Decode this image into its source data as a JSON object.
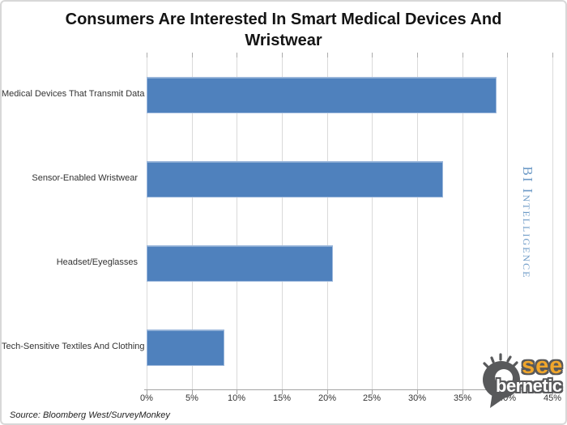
{
  "title_lines": [
    "Consumers Are Interested In Smart Medical Devices And",
    "Wristwear"
  ],
  "chart_data": {
    "type": "bar",
    "orientation": "horizontal",
    "title": "Consumers Are Interested In Smart Medical Devices And Wristwear",
    "categories": [
      "Medical Devices That Transmit Data",
      "Sensor-Enabled Wristwear",
      "Headset/Eyeglasses",
      "Tech-Sensitive Textiles And Clothing"
    ],
    "values": [
      38.8,
      32.9,
      20.7,
      8.6
    ],
    "unit": "%",
    "xlabel": "",
    "ylabel": "",
    "xlim": [
      0,
      45
    ],
    "xticks": [
      "0%",
      "5%",
      "10%",
      "15%",
      "20%",
      "25%",
      "30%",
      "35%",
      "40%",
      "45%"
    ],
    "grid": true,
    "legend": false,
    "bar_color": "#4f81bd"
  },
  "watermark": {
    "text": "BI Intelligence",
    "color": "#6e9bc7"
  },
  "source_note": "Source: Bloomberg West/SurveyMonkey",
  "logo": {
    "word_top": "see",
    "word_bottom": "bernetic",
    "accent_color": "#f0a62c",
    "word_bottom_color": "#ffffff",
    "base_color": "#58595b"
  }
}
